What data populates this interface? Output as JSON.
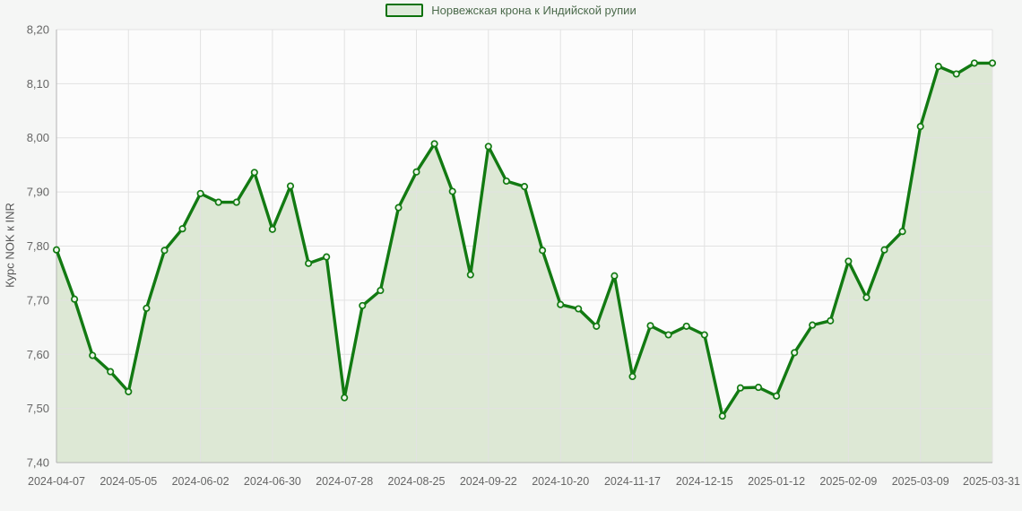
{
  "legend": {
    "label": "Норвежская крона к Индийской рупии"
  },
  "colors": {
    "line": "#127a12",
    "area_fill": "#dde8d5",
    "marker_fill": "#eef5ea",
    "grid": "#e2e2e2",
    "axis": "#b3b3b3",
    "tick_text": "#666666",
    "plot_bg": "#fcfcfc",
    "page_bg": "#f5f6f5",
    "legend_text": "#4c6b4c"
  },
  "chart_data": {
    "type": "area",
    "title": "",
    "ylabel": "Курс NOK к INR",
    "xlabel": "",
    "ylim": [
      7.4,
      8.2
    ],
    "grid": true,
    "legend_position": "top",
    "yticks": [
      "8,20",
      "8,10",
      "8,00",
      "7,90",
      "7,80",
      "7,70",
      "7,60",
      "7,50",
      "7,40"
    ],
    "ytick_values": [
      8.2,
      8.1,
      8.0,
      7.9,
      7.8,
      7.7,
      7.6,
      7.5,
      7.4
    ],
    "xtick_indices": [
      0,
      4,
      8,
      12,
      16,
      20,
      24,
      28,
      32,
      36,
      40,
      44,
      48,
      52
    ],
    "xtick_labels": [
      "2024-04-07",
      "2024-05-05",
      "2024-06-02",
      "2024-06-30",
      "2024-07-28",
      "2024-08-25",
      "2024-09-22",
      "2024-10-20",
      "2024-11-17",
      "2024-12-15",
      "2025-01-12",
      "2025-02-09",
      "2025-03-09",
      "2025-03-31"
    ],
    "series": [
      {
        "name": "Норвежская крона к Индийской рупии",
        "x": [
          "2024-04-07",
          "2024-04-14",
          "2024-04-21",
          "2024-04-28",
          "2024-05-05",
          "2024-05-12",
          "2024-05-19",
          "2024-05-26",
          "2024-06-02",
          "2024-06-09",
          "2024-06-16",
          "2024-06-23",
          "2024-06-30",
          "2024-07-07",
          "2024-07-14",
          "2024-07-21",
          "2024-07-28",
          "2024-08-04",
          "2024-08-11",
          "2024-08-18",
          "2024-08-25",
          "2024-09-01",
          "2024-09-08",
          "2024-09-15",
          "2024-09-22",
          "2024-09-29",
          "2024-10-06",
          "2024-10-13",
          "2024-10-20",
          "2024-10-27",
          "2024-11-03",
          "2024-11-10",
          "2024-11-17",
          "2024-11-24",
          "2024-12-01",
          "2024-12-08",
          "2024-12-15",
          "2024-12-22",
          "2024-12-29",
          "2025-01-05",
          "2025-01-12",
          "2025-01-19",
          "2025-01-26",
          "2025-02-02",
          "2025-02-09",
          "2025-02-16",
          "2025-02-23",
          "2025-03-02",
          "2025-03-09",
          "2025-03-16",
          "2025-03-23",
          "2025-03-30",
          "2025-03-31"
        ],
        "values": [
          7.793,
          7.702,
          7.598,
          7.568,
          7.531,
          7.685,
          7.792,
          7.832,
          7.897,
          7.881,
          7.881,
          7.936,
          7.831,
          7.911,
          7.768,
          7.78,
          7.52,
          7.69,
          7.718,
          7.871,
          7.937,
          7.989,
          7.901,
          7.747,
          7.984,
          7.92,
          7.91,
          7.792,
          7.692,
          7.684,
          7.652,
          7.745,
          7.559,
          7.653,
          7.636,
          7.652,
          7.636,
          7.486,
          7.538,
          7.539,
          7.523,
          7.603,
          7.654,
          7.662,
          7.772,
          7.705,
          7.793,
          7.827,
          8.021,
          8.132,
          8.118,
          8.138,
          8.138
        ]
      }
    ]
  }
}
